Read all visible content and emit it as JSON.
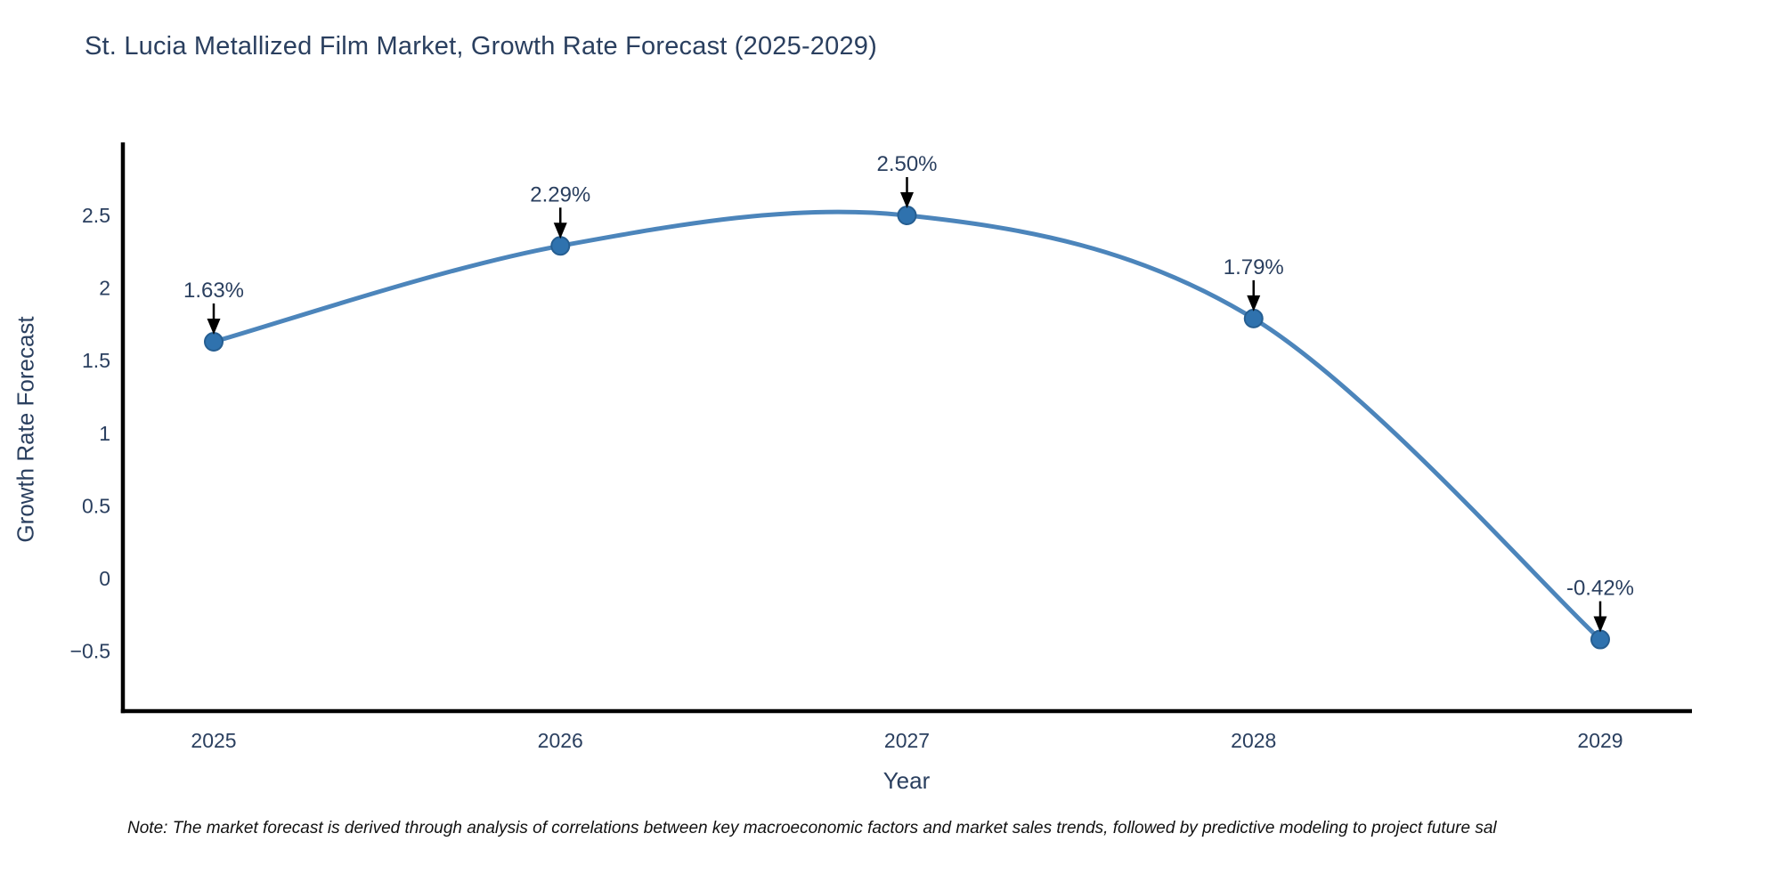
{
  "title": "St. Lucia Metallized Film Market, Growth Rate Forecast (2025-2029)",
  "note": "Note: The market forecast is derived through analysis of correlations between key macroeconomic factors and market sales trends, followed by predictive modeling to project future sal",
  "chart_data": {
    "type": "line",
    "line_shape": "spline",
    "title": "St. Lucia Metallized Film Market, Growth Rate Forecast (2025-2029)",
    "xlabel": "Year",
    "ylabel": "Growth Rate Forecast",
    "categories": [
      "2025",
      "2026",
      "2027",
      "2028",
      "2029"
    ],
    "series": [
      {
        "name": "Growth Rate Forecast",
        "values": [
          1.63,
          2.29,
          2.5,
          1.79,
          -0.42
        ]
      }
    ],
    "point_labels": [
      "1.63%",
      "2.29%",
      "2.50%",
      "1.79%",
      "-0.42%"
    ],
    "yticks": [
      2.5,
      2,
      1.5,
      1,
      0.5,
      0,
      -0.5
    ],
    "ytick_labels": [
      "2.5",
      "2",
      "1.5",
      "1",
      "0.5",
      "0",
      "−0.5"
    ],
    "ylim": [
      -0.93,
      2.99
    ],
    "grid": false,
    "legend": "none",
    "annotations_style": "value label with down arrow to marker",
    "colors": {
      "line": "#4c85bb",
      "marker_fill": "#2f72ae",
      "marker_edge": "#265e91",
      "arrow": "#000000",
      "text": "#2a3f5f",
      "axis_line": "#000000",
      "note_text": "#111111",
      "background": "#ffffff"
    }
  }
}
